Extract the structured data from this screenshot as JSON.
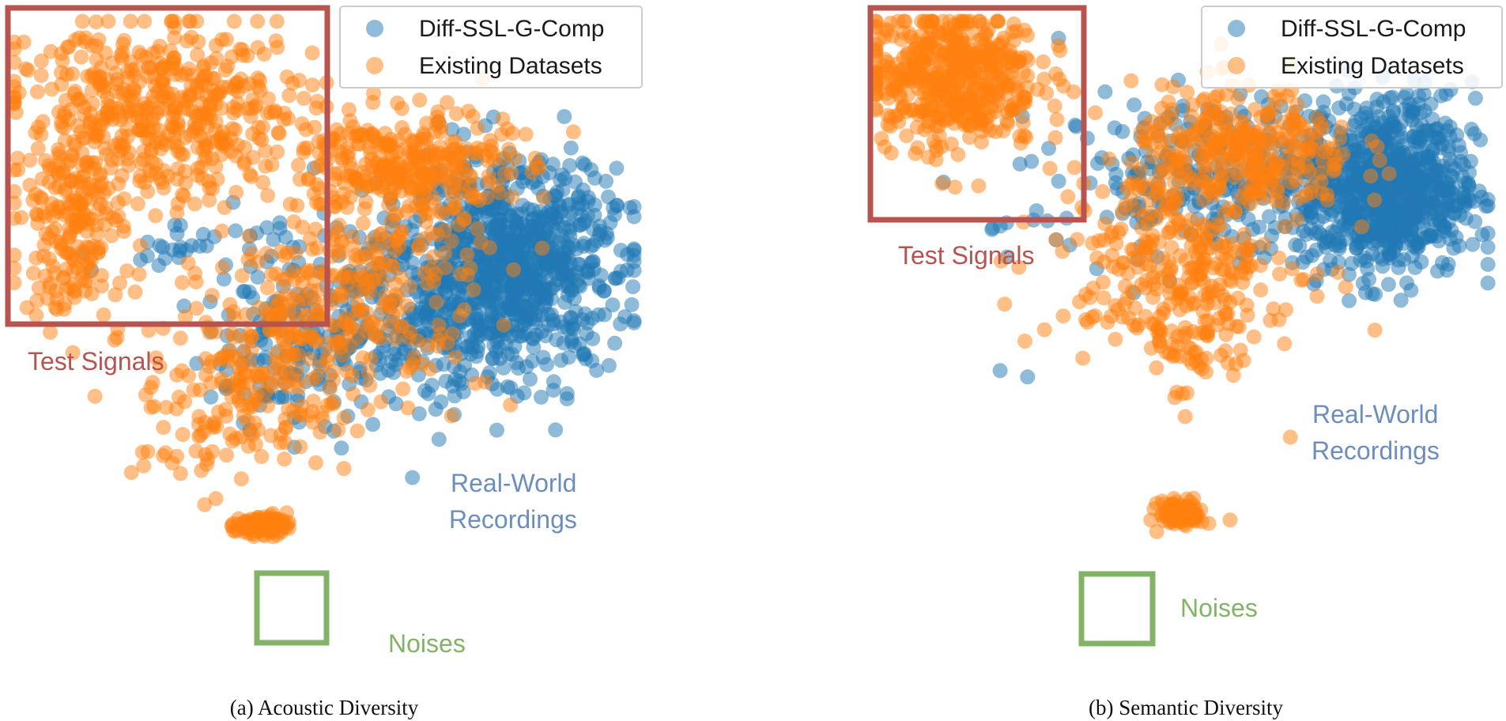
{
  "colors": {
    "diff": "#1f77b4",
    "existing": "#ff7f0e",
    "test_box": "#b85450",
    "noise_box": "#82b366",
    "realworld_text": "#6c8ebf"
  },
  "legend": {
    "series_a": "Diff-SSL-G-Comp",
    "series_b": "Existing Datasets"
  },
  "chart_data": [
    {
      "type": "scatter",
      "subplot": "a",
      "caption": "(a) Acoustic Diversity",
      "title": "",
      "xlabel": "",
      "ylabel": "",
      "xlim": [
        0,
        100
      ],
      "ylim": [
        0,
        100
      ],
      "axes_visible": false,
      "grid": false,
      "legend_position": "top-right",
      "annotations": {
        "test_signals": "Test Signals",
        "real_world_line1": "Real-World",
        "real_world_line2": "Recordings",
        "noises": "Noises"
      },
      "series": [
        {
          "name": "Diff-SSL-G-Comp",
          "clusters": [
            {
              "cx": 80,
              "cy": 55,
              "sx": 8.0,
              "sy": 9.0,
              "n": 800
            },
            {
              "cx": 63,
              "cy": 47,
              "sx": 13.0,
              "sy": 9.0,
              "n": 320
            },
            {
              "cx": 45,
              "cy": 38,
              "sx": 7.0,
              "sy": 6.5,
              "n": 90
            },
            {
              "cx": 30,
              "cy": 58,
              "sx": 8.0,
              "sy": 2.0,
              "n": 30
            }
          ]
        },
        {
          "name": "Existing Datasets",
          "clusters": [
            {
              "cx": 25,
              "cy": 82,
              "sx": 12.0,
              "sy": 8.0,
              "n": 500
            },
            {
              "cx": 10,
              "cy": 62,
              "sx": 4.0,
              "sy": 8.0,
              "n": 180
            },
            {
              "cx": 63,
              "cy": 73,
              "sx": 8.0,
              "sy": 5.0,
              "n": 300
            },
            {
              "cx": 54,
              "cy": 50,
              "sx": 11.0,
              "sy": 9.0,
              "n": 260
            },
            {
              "cx": 39,
              "cy": 34,
              "sx": 9.0,
              "sy": 7.0,
              "n": 170
            },
            {
              "cx": 29,
              "cy": 23,
              "sx": 6.0,
              "sy": 5.0,
              "n": 35
            },
            {
              "cx": 40,
              "cy": 8,
              "sx": 2.0,
              "sy": 1.0,
              "n": 90
            }
          ]
        }
      ]
    },
    {
      "type": "scatter",
      "subplot": "b",
      "caption": "(b) Semantic Diversity",
      "title": "",
      "xlabel": "",
      "ylabel": "",
      "xlim": [
        0,
        100
      ],
      "ylim": [
        0,
        100
      ],
      "axes_visible": false,
      "grid": false,
      "legend_position": "top-right",
      "annotations": {
        "test_signals": "Test Signals",
        "real_world_line1": "Real-World",
        "real_world_line2": "Recordings",
        "noises": "Noises"
      },
      "series": [
        {
          "name": "Diff-SSL-G-Comp",
          "clusters": [
            {
              "cx": 83,
              "cy": 69,
              "sx": 7.0,
              "sy": 8.0,
              "n": 800
            },
            {
              "cx": 56,
              "cy": 71,
              "sx": 13.0,
              "sy": 7.0,
              "n": 280
            },
            {
              "cx": 21,
              "cy": 64,
              "sx": 6.0,
              "sy": 3.0,
              "n": 8
            },
            {
              "cx": 24,
              "cy": 36,
              "sx": 2.0,
              "sy": 2.0,
              "n": 2
            }
          ]
        },
        {
          "name": "Existing Datasets",
          "clusters": [
            {
              "cx": 13,
              "cy": 89,
              "sx": 7.0,
              "sy": 6.5,
              "n": 500
            },
            {
              "cx": 60,
              "cy": 75,
              "sx": 9.0,
              "sy": 6.0,
              "n": 300
            },
            {
              "cx": 49,
              "cy": 57,
              "sx": 10.0,
              "sy": 8.0,
              "n": 250
            },
            {
              "cx": 52,
              "cy": 42,
              "sx": 6.0,
              "sy": 6.0,
              "n": 80
            },
            {
              "cx": 50,
              "cy": 10,
              "sx": 1.8,
              "sy": 1.2,
              "n": 90
            }
          ]
        }
      ]
    }
  ]
}
